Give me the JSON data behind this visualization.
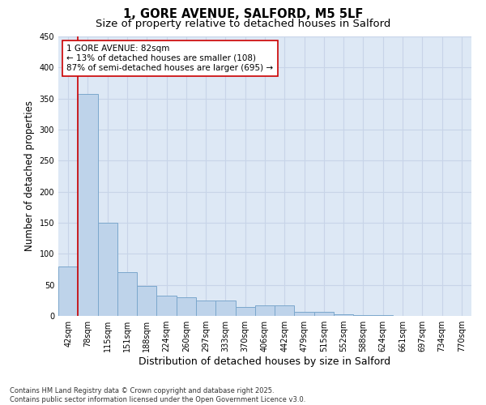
{
  "title_line1": "1, GORE AVENUE, SALFORD, M5 5LF",
  "title_line2": "Size of property relative to detached houses in Salford",
  "xlabel": "Distribution of detached houses by size in Salford",
  "ylabel": "Number of detached properties",
  "categories": [
    "42sqm",
    "78sqm",
    "115sqm",
    "151sqm",
    "188sqm",
    "224sqm",
    "260sqm",
    "297sqm",
    "333sqm",
    "370sqm",
    "406sqm",
    "442sqm",
    "479sqm",
    "515sqm",
    "552sqm",
    "588sqm",
    "624sqm",
    "661sqm",
    "697sqm",
    "734sqm",
    "770sqm"
  ],
  "values": [
    80,
    358,
    150,
    70,
    48,
    32,
    30,
    25,
    25,
    15,
    17,
    17,
    6,
    6,
    2,
    1,
    1,
    0.5,
    0.2,
    0.2,
    0.2
  ],
  "bar_color": "#bed3ea",
  "bar_edge_color": "#7ba7cc",
  "highlight_bar_index": 1,
  "highlight_color": "#cc0000",
  "ylim": [
    0,
    450
  ],
  "yticks": [
    0,
    50,
    100,
    150,
    200,
    250,
    300,
    350,
    400,
    450
  ],
  "annotation_text": "1 GORE AVENUE: 82sqm\n← 13% of detached houses are smaller (108)\n87% of semi-detached houses are larger (695) →",
  "annotation_fontsize": 7.5,
  "background_color": "#ffffff",
  "grid_color": "#c8d4e8",
  "footer_line1": "Contains HM Land Registry data © Crown copyright and database right 2025.",
  "footer_line2": "Contains public sector information licensed under the Open Government Licence v3.0.",
  "title_fontsize": 10.5,
  "subtitle_fontsize": 9.5,
  "tick_fontsize": 7,
  "ylabel_fontsize": 8.5,
  "xlabel_fontsize": 9,
  "footer_fontsize": 6
}
